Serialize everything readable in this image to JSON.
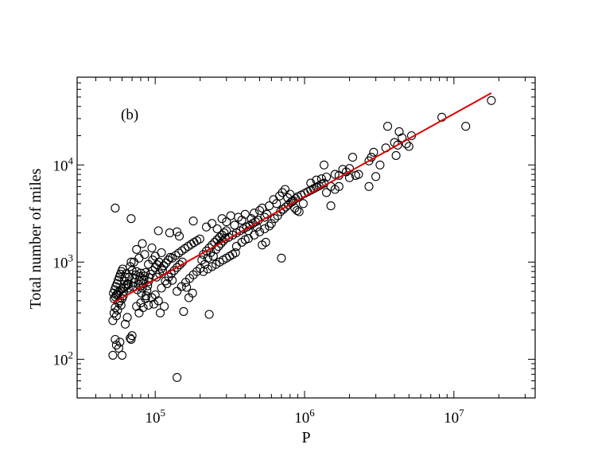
{
  "chart_data": {
    "type": "scatter",
    "title": "",
    "panel_label": "(b)",
    "xlabel": "P",
    "ylabel": "Total number of miles",
    "x_scale": "log",
    "y_scale": "log",
    "xlim": [
      30000,
      35000000
    ],
    "ylim": [
      40,
      80000
    ],
    "x_ticks": [
      {
        "value": 100000,
        "base": "10",
        "exp": "5"
      },
      {
        "value": 1000000,
        "base": "10",
        "exp": "6"
      },
      {
        "value": 10000000,
        "base": "10",
        "exp": "7"
      }
    ],
    "y_ticks": [
      {
        "value": 100,
        "base": "10",
        "exp": "2"
      },
      {
        "value": 1000,
        "base": "10",
        "exp": "3"
      },
      {
        "value": 10000,
        "base": "10",
        "exp": "4"
      }
    ],
    "grid": false,
    "legend": "none",
    "marker": "open-circle",
    "marker_color": "#000000",
    "fit_line": {
      "color": "#e00000",
      "x": [
        52000,
        17800000
      ],
      "y": [
        380,
        55000
      ]
    },
    "series": [
      {
        "points": [
          [
            52000,
            250
          ],
          [
            53000,
            300
          ],
          [
            54000,
            340
          ],
          [
            55000,
            280
          ],
          [
            56000,
            320
          ],
          [
            57000,
            380
          ],
          [
            58000,
            400
          ],
          [
            59000,
            360
          ],
          [
            60000,
            420
          ],
          [
            61000,
            450
          ],
          [
            52500,
            480
          ],
          [
            53500,
            520
          ],
          [
            54500,
            560
          ],
          [
            55500,
            600
          ],
          [
            56500,
            650
          ],
          [
            57500,
            700
          ],
          [
            58500,
            750
          ],
          [
            59500,
            800
          ],
          [
            60500,
            850
          ],
          [
            61500,
            500
          ],
          [
            53000,
            420
          ],
          [
            54000,
            440
          ],
          [
            55000,
            460
          ],
          [
            56000,
            470
          ],
          [
            57000,
            490
          ],
          [
            58000,
            510
          ],
          [
            60000,
            530
          ],
          [
            62000,
            550
          ],
          [
            64000,
            570
          ],
          [
            66000,
            590
          ],
          [
            52000,
            110
          ],
          [
            55000,
            140
          ],
          [
            58000,
            150
          ],
          [
            60000,
            110
          ],
          [
            57000,
            130
          ],
          [
            54000,
            160
          ],
          [
            63000,
            230
          ],
          [
            65000,
            270
          ],
          [
            70000,
            175
          ],
          [
            69000,
            160
          ],
          [
            68000,
            165
          ],
          [
            54000,
            3600
          ],
          [
            69000,
            2800
          ],
          [
            105000,
            2100
          ],
          [
            125000,
            2000
          ],
          [
            140000,
            2050
          ],
          [
            180000,
            2650
          ],
          [
            145000,
            1850
          ],
          [
            62000,
            640
          ],
          [
            63000,
            700
          ],
          [
            64000,
            760
          ],
          [
            65000,
            600
          ],
          [
            66000,
            540
          ],
          [
            67000,
            700
          ],
          [
            68000,
            900
          ],
          [
            69000,
            1000
          ],
          [
            70000,
            820
          ],
          [
            71000,
            560
          ],
          [
            72000,
            620
          ],
          [
            73000,
            680
          ],
          [
            74000,
            740
          ],
          [
            75000,
            800
          ],
          [
            76000,
            520
          ],
          [
            77000,
            590
          ],
          [
            78000,
            650
          ],
          [
            79000,
            710
          ],
          [
            80000,
            770
          ],
          [
            81000,
            480
          ],
          [
            82000,
            540
          ],
          [
            83000,
            600
          ],
          [
            84000,
            660
          ],
          [
            85000,
            720
          ],
          [
            86000,
            780
          ],
          [
            87000,
            450
          ],
          [
            88000,
            510
          ],
          [
            89000,
            570
          ],
          [
            90000,
            630
          ],
          [
            91000,
            690
          ],
          [
            75000,
            350
          ],
          [
            78000,
            300
          ],
          [
            80000,
            380
          ],
          [
            83000,
            340
          ],
          [
            86000,
            420
          ],
          [
            90000,
            360
          ],
          [
            95000,
            430
          ],
          [
            98000,
            370
          ],
          [
            100000,
            460
          ],
          [
            105000,
            400
          ],
          [
            72000,
            1000
          ],
          [
            78000,
            1100
          ],
          [
            85000,
            1200
          ],
          [
            90000,
            950
          ],
          [
            96000,
            1050
          ],
          [
            100000,
            1150
          ],
          [
            110000,
            1250
          ],
          [
            75000,
            1350
          ],
          [
            82000,
            1550
          ],
          [
            95000,
            1400
          ],
          [
            93000,
            750
          ],
          [
            96000,
            820
          ],
          [
            100000,
            880
          ],
          [
            103000,
            940
          ],
          [
            106000,
            1000
          ],
          [
            110000,
            860
          ],
          [
            114000,
            920
          ],
          [
            118000,
            980
          ],
          [
            122000,
            1050
          ],
          [
            126000,
            1120
          ],
          [
            102000,
            700
          ],
          [
            107000,
            760
          ],
          [
            112000,
            820
          ],
          [
            117000,
            640
          ],
          [
            123000,
            700
          ],
          [
            128000,
            760
          ],
          [
            134000,
            820
          ],
          [
            140000,
            880
          ],
          [
            146000,
            940
          ],
          [
            152000,
            1000
          ],
          [
            130000,
            1100
          ],
          [
            137000,
            1170
          ],
          [
            144000,
            1240
          ],
          [
            151000,
            1310
          ],
          [
            158000,
            1380
          ],
          [
            166000,
            1450
          ],
          [
            174000,
            1520
          ],
          [
            182000,
            1590
          ],
          [
            190000,
            1660
          ],
          [
            199000,
            1730
          ],
          [
            110000,
            540
          ],
          [
            120000,
            600
          ],
          [
            130000,
            650
          ],
          [
            140000,
            500
          ],
          [
            150000,
            560
          ],
          [
            160000,
            620
          ],
          [
            170000,
            680
          ],
          [
            180000,
            740
          ],
          [
            190000,
            800
          ],
          [
            200000,
            860
          ],
          [
            108000,
            300
          ],
          [
            115000,
            350
          ],
          [
            155000,
            310
          ],
          [
            230000,
            290
          ],
          [
            140000,
            65
          ],
          [
            162000,
            550
          ],
          [
            168000,
            430
          ],
          [
            178000,
            480
          ],
          [
            210000,
            1200
          ],
          [
            220000,
            1300
          ],
          [
            230000,
            1400
          ],
          [
            240000,
            1500
          ],
          [
            250000,
            1600
          ],
          [
            260000,
            1700
          ],
          [
            270000,
            1800
          ],
          [
            280000,
            1900
          ],
          [
            290000,
            2000
          ],
          [
            300000,
            2100
          ],
          [
            205000,
            1050
          ],
          [
            215000,
            950
          ],
          [
            225000,
            1100
          ],
          [
            235000,
            1250
          ],
          [
            245000,
            1150
          ],
          [
            255000,
            1350
          ],
          [
            265000,
            1450
          ],
          [
            275000,
            1550
          ],
          [
            285000,
            1650
          ],
          [
            295000,
            1750
          ],
          [
            210000,
            800
          ],
          [
            225000,
            850
          ],
          [
            240000,
            900
          ],
          [
            255000,
            950
          ],
          [
            270000,
            1000
          ],
          [
            285000,
            1050
          ],
          [
            300000,
            1100
          ],
          [
            315000,
            1150
          ],
          [
            330000,
            1200
          ],
          [
            345000,
            1250
          ],
          [
            220000,
            2300
          ],
          [
            240000,
            2500
          ],
          [
            260000,
            2200
          ],
          [
            280000,
            2800
          ],
          [
            300000,
            2600
          ],
          [
            320000,
            3000
          ],
          [
            340000,
            2400
          ],
          [
            360000,
            2900
          ],
          [
            380000,
            2700
          ],
          [
            400000,
            3100
          ],
          [
            310000,
            1800
          ],
          [
            330000,
            1900
          ],
          [
            350000,
            2000
          ],
          [
            370000,
            2100
          ],
          [
            390000,
            2200
          ],
          [
            410000,
            2300
          ],
          [
            430000,
            2400
          ],
          [
            450000,
            2500
          ],
          [
            470000,
            2600
          ],
          [
            490000,
            2700
          ],
          [
            400000,
            1700
          ],
          [
            420000,
            2100
          ],
          [
            440000,
            2800
          ],
          [
            460000,
            3200
          ],
          [
            480000,
            2300
          ],
          [
            500000,
            3400
          ],
          [
            520000,
            3600
          ],
          [
            540000,
            2900
          ],
          [
            560000,
            3100
          ],
          [
            580000,
            3800
          ],
          [
            350000,
            1450
          ],
          [
            380000,
            1600
          ],
          [
            420000,
            1750
          ],
          [
            460000,
            1900
          ],
          [
            500000,
            2050
          ],
          [
            540000,
            2200
          ],
          [
            580000,
            2350
          ],
          [
            520000,
            1500
          ],
          [
            550000,
            1600
          ],
          [
            700000,
            1100
          ],
          [
            600000,
            2500
          ],
          [
            630000,
            2800
          ],
          [
            660000,
            3000
          ],
          [
            690000,
            3300
          ],
          [
            720000,
            3500
          ],
          [
            750000,
            3700
          ],
          [
            780000,
            3900
          ],
          [
            810000,
            4100
          ],
          [
            840000,
            4300
          ],
          [
            870000,
            4500
          ],
          [
            620000,
            4400
          ],
          [
            650000,
            4000
          ],
          [
            680000,
            4800
          ],
          [
            710000,
            5200
          ],
          [
            740000,
            5600
          ],
          [
            770000,
            4600
          ],
          [
            800000,
            5000
          ],
          [
            830000,
            4200
          ],
          [
            860000,
            3600
          ],
          [
            890000,
            3400
          ],
          [
            900000,
            4700
          ],
          [
            950000,
            4900
          ],
          [
            1000000,
            5100
          ],
          [
            1050000,
            5300
          ],
          [
            1100000,
            5500
          ],
          [
            1150000,
            5700
          ],
          [
            1200000,
            5900
          ],
          [
            1250000,
            6100
          ],
          [
            1300000,
            6300
          ],
          [
            1350000,
            6500
          ],
          [
            920000,
            3300
          ],
          [
            980000,
            4000
          ],
          [
            1100000,
            6500
          ],
          [
            1200000,
            7000
          ],
          [
            1300000,
            7200
          ],
          [
            1400000,
            7500
          ],
          [
            1500000,
            6000
          ],
          [
            1600000,
            8000
          ],
          [
            1700000,
            7800
          ],
          [
            1800000,
            9000
          ],
          [
            1350000,
            10000
          ],
          [
            1400000,
            5200
          ],
          [
            1500000,
            3800
          ],
          [
            1600000,
            5600
          ],
          [
            1700000,
            6000
          ],
          [
            1900000,
            8500
          ],
          [
            2000000,
            9200
          ],
          [
            2100000,
            12000
          ],
          [
            2200000,
            7800
          ],
          [
            2300000,
            8000
          ],
          [
            2000000,
            7400
          ],
          [
            2700000,
            11000
          ],
          [
            2800000,
            12000
          ],
          [
            2700000,
            6000
          ],
          [
            2900000,
            13500
          ],
          [
            3000000,
            7600
          ],
          [
            3500000,
            15000
          ],
          [
            3600000,
            25000
          ],
          [
            4000000,
            17000
          ],
          [
            4200000,
            16000
          ],
          [
            4100000,
            12500
          ],
          [
            4300000,
            22000
          ],
          [
            4500000,
            19000
          ],
          [
            4800000,
            16500
          ],
          [
            5000000,
            15500
          ],
          [
            5200000,
            20000
          ],
          [
            8300000,
            31000
          ],
          [
            12000000,
            25000
          ],
          [
            17800000,
            46000
          ],
          [
            3200000,
            10000
          ]
        ]
      }
    ]
  }
}
